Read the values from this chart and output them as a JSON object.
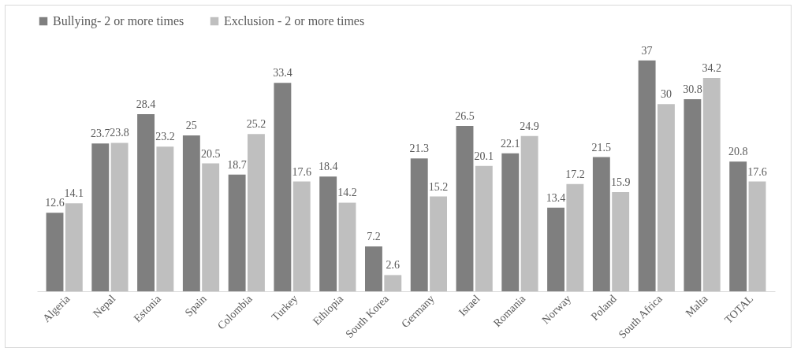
{
  "chart_data": {
    "type": "bar",
    "categories": [
      "Algeria",
      "Nepal",
      "Estonia",
      "Spain",
      "Colombia",
      "Turkey",
      "Ethiopia",
      "South Korea",
      "Germany",
      "Israel",
      "Romania",
      "Norway",
      "Poland",
      "South Africa",
      "Malta",
      "TOTAL"
    ],
    "series": [
      {
        "name": "Bullying- 2 or more times",
        "color": "#7f7f7f",
        "values": [
          12.6,
          23.7,
          28.4,
          25,
          18.7,
          33.4,
          18.4,
          7.2,
          21.3,
          26.5,
          22.1,
          13.4,
          21.5,
          37,
          30.8,
          20.8
        ]
      },
      {
        "name": "Exclusion - 2 or more times",
        "color": "#bfbfbf",
        "values": [
          14.1,
          23.8,
          23.2,
          20.5,
          25.2,
          17.6,
          14.2,
          2.6,
          15.2,
          20.1,
          24.9,
          17.2,
          15.9,
          30,
          34.2,
          17.6
        ]
      }
    ],
    "data_labels": true,
    "legend": "top",
    "grid": false
  }
}
